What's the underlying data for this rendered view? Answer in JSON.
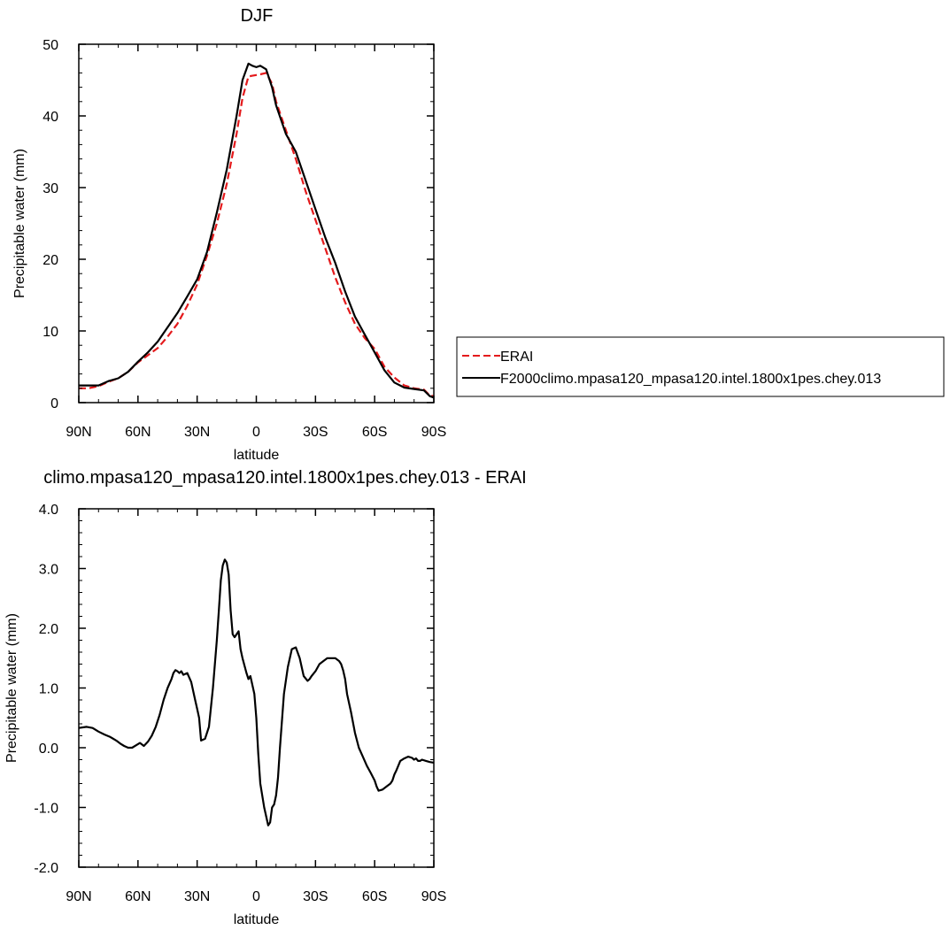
{
  "chart_data": [
    {
      "type": "line",
      "title": "DJF",
      "xlabel": "latitude",
      "ylabel": "Precipitable water (mm)",
      "xlim": [
        90,
        -90
      ],
      "ylim": [
        0,
        50
      ],
      "x_ticks": [
        90,
        60,
        30,
        0,
        -30,
        -60,
        -90
      ],
      "x_tick_labels": [
        "90N",
        "60N",
        "30N",
        "0",
        "30S",
        "60S",
        "90S"
      ],
      "y_ticks": [
        0,
        10,
        20,
        30,
        40,
        50
      ],
      "y_tick_labels": [
        "0",
        "10",
        "20",
        "30",
        "40",
        "50"
      ],
      "legend_position": "right",
      "series": [
        {
          "name": "ERAI",
          "color": "#e41a1c",
          "dash": "dashed",
          "x": [
            90,
            85,
            80,
            75,
            70,
            65,
            60,
            55,
            50,
            45,
            40,
            35,
            30,
            25,
            20,
            15,
            10,
            7,
            4,
            2,
            0,
            -2,
            -5,
            -8,
            -10,
            -15,
            -20,
            -25,
            -30,
            -35,
            -40,
            -45,
            -50,
            -55,
            -60,
            -65,
            -70,
            -75,
            -80,
            -85,
            -88,
            -90
          ],
          "y": [
            2.0,
            2.0,
            2.3,
            2.9,
            3.4,
            4.3,
            5.6,
            6.6,
            7.6,
            9.2,
            11.0,
            13.5,
            16.5,
            20.5,
            25.0,
            30.5,
            37.5,
            42.5,
            45.5,
            45.6,
            45.7,
            45.8,
            46.0,
            44.5,
            42.0,
            38.0,
            34.0,
            29.5,
            25.5,
            21.5,
            17.5,
            14.0,
            11.0,
            9.0,
            7.5,
            5.0,
            3.5,
            2.4,
            2.0,
            1.8,
            1.0,
            0.9
          ]
        },
        {
          "name": "F2000climo.mpasa120_mpasa120.intel.1800x1pes.chey.013",
          "color": "#000000",
          "dash": "solid",
          "x": [
            90,
            85,
            80,
            75,
            70,
            65,
            60,
            55,
            50,
            45,
            40,
            35,
            30,
            25,
            20,
            15,
            10,
            7,
            4,
            2,
            0,
            -2,
            -5,
            -8,
            -10,
            -15,
            -20,
            -25,
            -30,
            -35,
            -40,
            -45,
            -50,
            -55,
            -60,
            -65,
            -70,
            -75,
            -80,
            -85,
            -88,
            -90
          ],
          "y": [
            2.4,
            2.4,
            2.4,
            3.0,
            3.4,
            4.3,
            5.7,
            7.0,
            8.5,
            10.5,
            12.5,
            14.8,
            17.2,
            21.0,
            26.5,
            32.5,
            40.0,
            45.0,
            47.3,
            47.0,
            46.8,
            47.0,
            46.5,
            44.0,
            41.5,
            37.5,
            35.0,
            31.0,
            27.0,
            23.0,
            19.5,
            15.5,
            12.0,
            9.5,
            7.0,
            4.5,
            2.8,
            2.1,
            1.9,
            1.7,
            0.9,
            0.7
          ]
        }
      ]
    },
    {
      "type": "line",
      "title": "climo.mpasa120_mpasa120.intel.1800x1pes.chey.013 - ERAI",
      "xlabel": "latitude",
      "ylabel": "Precipitable water (mm)",
      "xlim": [
        90,
        -90
      ],
      "ylim": [
        -2.0,
        4.0
      ],
      "x_ticks": [
        90,
        60,
        30,
        0,
        -30,
        -60,
        -90
      ],
      "x_tick_labels": [
        "90N",
        "60N",
        "30N",
        "0",
        "30S",
        "60S",
        "90S"
      ],
      "y_ticks": [
        -2.0,
        -1.0,
        0.0,
        1.0,
        2.0,
        3.0,
        4.0
      ],
      "y_tick_labels": [
        "-2.0",
        "-1.0",
        "0.0",
        "1.0",
        "2.0",
        "3.0",
        "4.0"
      ],
      "series": [
        {
          "name": "",
          "color": "#000000",
          "dash": "solid",
          "x": [
            90,
            86,
            83,
            80,
            77,
            74,
            71,
            69,
            67,
            65,
            63,
            61,
            59,
            57,
            55,
            53,
            51,
            49,
            47,
            45,
            43,
            42,
            41,
            40,
            39,
            38,
            37,
            35,
            33,
            31,
            30,
            29,
            28,
            26,
            24,
            22,
            20,
            19,
            18,
            17,
            16,
            15,
            14,
            13,
            12,
            11,
            9,
            8,
            7,
            5,
            4,
            3,
            1,
            0,
            -1,
            -2,
            -4,
            -6,
            -7,
            -8,
            -9,
            -10,
            -11,
            -12,
            -14,
            -16,
            -18,
            -20,
            -22,
            -24,
            -26,
            -27,
            -28,
            -30,
            -32,
            -34,
            -36,
            -38,
            -40,
            -42,
            -43,
            -44,
            -45,
            -46,
            -48,
            -50,
            -52,
            -54,
            -56,
            -58,
            -60,
            -61,
            -62,
            -64,
            -66,
            -68,
            -69,
            -70,
            -71,
            -72,
            -73,
            -75,
            -77,
            -79,
            -80,
            -81,
            -82,
            -83,
            -84,
            -86,
            -88,
            -90
          ],
          "y": [
            0.33,
            0.35,
            0.33,
            0.27,
            0.22,
            0.18,
            0.12,
            0.07,
            0.03,
            0.0,
            0.0,
            0.04,
            0.08,
            0.03,
            0.1,
            0.2,
            0.35,
            0.55,
            0.8,
            1.0,
            1.15,
            1.25,
            1.3,
            1.28,
            1.25,
            1.28,
            1.22,
            1.25,
            1.1,
            0.8,
            0.65,
            0.5,
            0.12,
            0.15,
            0.35,
            1.0,
            1.8,
            2.3,
            2.8,
            3.05,
            3.15,
            3.1,
            2.9,
            2.3,
            1.9,
            1.85,
            1.95,
            1.65,
            1.5,
            1.25,
            1.15,
            1.2,
            0.9,
            0.5,
            -0.1,
            -0.6,
            -1.0,
            -1.3,
            -1.25,
            -1.0,
            -0.95,
            -0.8,
            -0.5,
            0.0,
            0.9,
            1.35,
            1.65,
            1.68,
            1.5,
            1.2,
            1.12,
            1.15,
            1.2,
            1.28,
            1.4,
            1.45,
            1.5,
            1.5,
            1.5,
            1.45,
            1.4,
            1.3,
            1.15,
            0.9,
            0.6,
            0.25,
            0.0,
            -0.15,
            -0.3,
            -0.42,
            -0.55,
            -0.65,
            -0.72,
            -0.7,
            -0.65,
            -0.6,
            -0.55,
            -0.45,
            -0.38,
            -0.3,
            -0.22,
            -0.18,
            -0.15,
            -0.17,
            -0.2,
            -0.18,
            -0.22,
            -0.22,
            -0.2,
            -0.22,
            -0.24,
            -0.25
          ]
        }
      ]
    }
  ]
}
